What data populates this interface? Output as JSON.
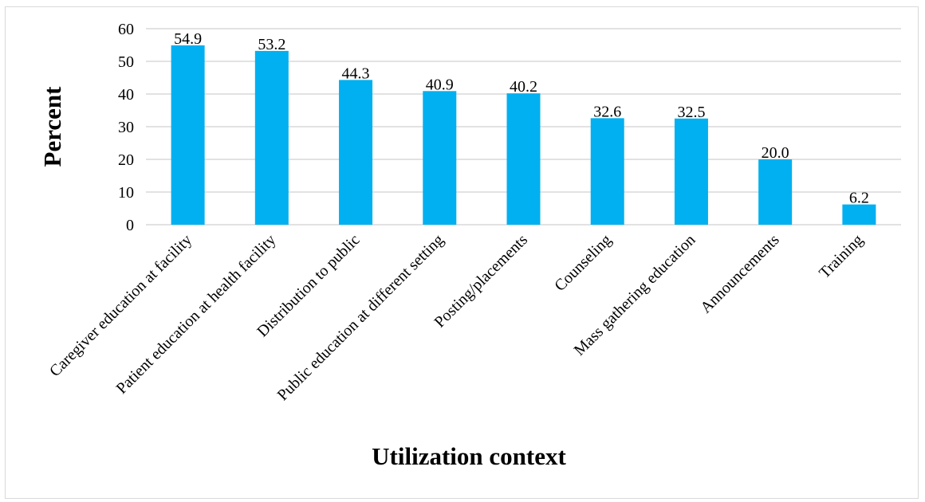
{
  "chart_data": {
    "type": "bar",
    "title": "",
    "xlabel": "Utilization context",
    "ylabel": "Percent",
    "ylim": [
      0,
      60
    ],
    "yticks": [
      0,
      10,
      20,
      30,
      40,
      50,
      60
    ],
    "grid": true,
    "legend": "none",
    "bar_color": "#00b0f0",
    "categories": [
      "Caregiver education at facility",
      "Patient education at health facility",
      "Distribution to public",
      "Public education at different setting",
      "Posting/placements",
      "Counseling",
      "Mass gathering education",
      "Announcements",
      "Training"
    ],
    "values": [
      54.9,
      53.2,
      44.3,
      40.9,
      40.2,
      32.6,
      32.5,
      20.0,
      6.2
    ],
    "value_labels": [
      "54.9",
      "53.2",
      "44.3",
      "40.9",
      "40.2",
      "32.6",
      "32.5",
      "20.0",
      "6.2"
    ]
  }
}
